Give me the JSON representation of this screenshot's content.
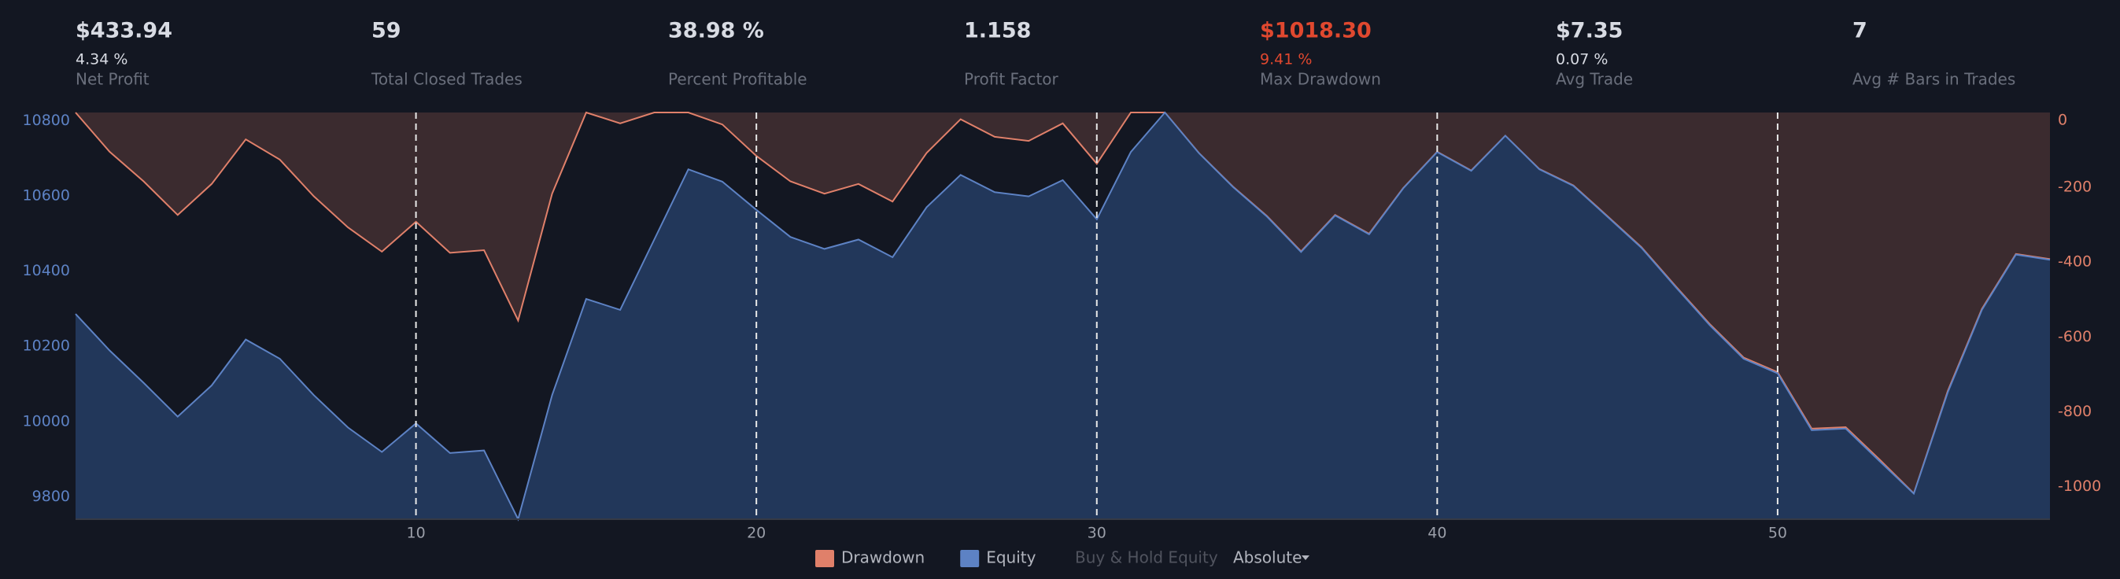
{
  "stats": [
    {
      "value": "$433.94",
      "sub": "4.34 %",
      "label": "Net Profit"
    },
    {
      "value": "59",
      "label": "Total Closed Trades"
    },
    {
      "value": "38.98 %",
      "label": "Percent Profitable"
    },
    {
      "value": "1.158",
      "label": "Profit Factor"
    },
    {
      "value": "$1018.30",
      "sub": "9.41 %",
      "label": "Max Drawdown",
      "color": "#e0482f"
    },
    {
      "value": "$7.35",
      "sub": "0.07 %",
      "label": "Avg Trade"
    },
    {
      "value": "7",
      "label": "Avg # Bars in Trades"
    }
  ],
  "chart_data": {
    "type": "area",
    "x": [
      0,
      1,
      2,
      3,
      4,
      5,
      6,
      7,
      8,
      9,
      10,
      11,
      12,
      13,
      14,
      15,
      16,
      17,
      18,
      19,
      20,
      21,
      22,
      23,
      24,
      25,
      26,
      27,
      28,
      29,
      30,
      31,
      32,
      33,
      34,
      35,
      36,
      37,
      38,
      39,
      40,
      41,
      42,
      43,
      44,
      45,
      46,
      47,
      48,
      49,
      50,
      51,
      52,
      53,
      54,
      55,
      56,
      57,
      58
    ],
    "xlim": [
      0,
      58
    ],
    "xticks": [
      10,
      20,
      30,
      40,
      50
    ],
    "ylim": [
      9740,
      10822
    ],
    "yticks": [
      9800,
      10000,
      10200,
      10400,
      10600,
      10800
    ],
    "y2lim": [
      -1087,
      0
    ],
    "y2ticks": [
      -1000,
      -800,
      -600,
      -400,
      -200,
      0
    ],
    "grid": "x-dashed",
    "series": [
      {
        "name": "Drawdown",
        "color": "#e0806a",
        "fill_color": "#3b2b2f",
        "axis": "y2",
        "values": [
          0,
          -105,
          -184,
          -274,
          -191,
          -72,
          -126,
          -224,
          -307,
          -372,
          -292,
          -375,
          -368,
          -556,
          -217,
          0,
          -29,
          0,
          0,
          -32,
          -116,
          -184,
          -217,
          -191,
          -238,
          -108,
          -18,
          -65,
          -76,
          -29,
          -137,
          0,
          0,
          -108,
          -198,
          -277,
          -371,
          -274,
          -324,
          -202,
          -105,
          -155,
          -62,
          -151,
          -195,
          -277,
          -360,
          -464,
          -565,
          -655,
          -694,
          -845,
          -841,
          -928,
          -1018,
          -744,
          -525,
          -378,
          -392
        ]
      },
      {
        "name": "Equity",
        "color": "#5d82c4",
        "fill_color": "#22375a",
        "values": [
          10286,
          10189,
          10103,
          10013,
          10096,
          10218,
          10167,
          10070,
          9984,
          9919,
          9995,
          9916,
          9923,
          9740,
          10070,
          10326,
          10297,
          10484,
          10671,
          10638,
          10563,
          10491,
          10459,
          10484,
          10437,
          10570,
          10656,
          10610,
          10599,
          10642,
          10538,
          10717,
          10822,
          10714,
          10624,
          10545,
          10451,
          10548,
          10498,
          10620,
          10717,
          10667,
          10760,
          10671,
          10627,
          10545,
          10462,
          10358,
          10257,
          10167,
          10128,
          9977,
          9981,
          9894,
          9808,
          10078,
          10297,
          10444,
          10430
        ]
      }
    ],
    "inactive_legend": "Buy & Hold Equity",
    "scale_mode": "Absolute"
  }
}
